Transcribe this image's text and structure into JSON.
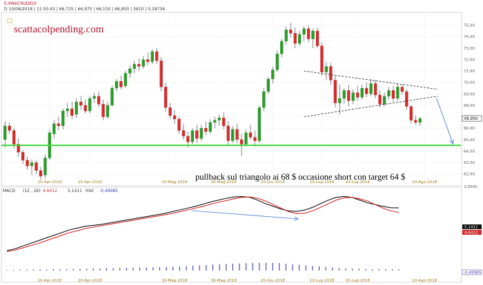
{
  "header": {
    "symbol": "E-MINICRUDEOI",
    "info": "D 10/08/2018 | 11:50:43 | 66,725 | 66,975 | 66,150 | 66,850 | 3610 | 0,18734",
    "brand": "scattacolpending.com"
  },
  "annotation": "pullback sul triangolo ai 68 $  occasione short con target 64 $",
  "macd_header": {
    "label": "MACD",
    "params": "(12 , 26)",
    "v1": "4,6412",
    "v2": "5,1411",
    "hist_label": "Hist",
    "v3": "-0,49985"
  },
  "colors": {
    "up": "#2a9a2a",
    "down": "#d42a2a",
    "support": "#39d839",
    "macd_line": "#111111",
    "signal_line": "#d42a2a",
    "arrow": "#6f9ad8",
    "hist": "#3a3aa8"
  },
  "chart_data": [
    {
      "type": "candlestick",
      "title": "E-MINICRUDEOI",
      "x_ticks": [
        "10-Apr-2018",
        "20-Apr-2018",
        "10-Mag-2018",
        "30-Mag-2018",
        "20-Giu-2018",
        "10-Lug-2018",
        "20-Lug-2018",
        "10-Ago-2018"
      ],
      "y_ticks": [
        "75,00",
        "74,00",
        "73,00",
        "72,00",
        "71,00",
        "70,00",
        "69,00",
        "68,00",
        "67,00",
        "66,00",
        "65,00",
        "64,00",
        "63,00",
        "62,00"
      ],
      "ylim": [
        61.2,
        76.0
      ],
      "last_price_label": "66,850",
      "support_level": 64.5,
      "triangle": {
        "upper": [
          [
            67,
            71.0
          ],
          [
            97,
            69.4
          ]
        ],
        "lower": [
          [
            67,
            67.0
          ],
          [
            97,
            68.8
          ]
        ]
      },
      "candles": [
        {
          "o": 65.0,
          "h": 66.6,
          "l": 64.3,
          "c": 66.2
        },
        {
          "o": 66.2,
          "h": 66.5,
          "l": 65.5,
          "c": 65.8
        },
        {
          "o": 65.8,
          "h": 66.0,
          "l": 64.2,
          "c": 64.6
        },
        {
          "o": 64.6,
          "h": 65.1,
          "l": 63.5,
          "c": 63.9
        },
        {
          "o": 63.9,
          "h": 64.1,
          "l": 62.9,
          "c": 63.2
        },
        {
          "o": 63.2,
          "h": 63.5,
          "l": 62.4,
          "c": 62.7
        },
        {
          "o": 62.7,
          "h": 63.3,
          "l": 61.9,
          "c": 63.0
        },
        {
          "o": 63.0,
          "h": 63.2,
          "l": 62.0,
          "c": 62.3
        },
        {
          "o": 62.3,
          "h": 62.6,
          "l": 61.5,
          "c": 61.8
        },
        {
          "o": 61.9,
          "h": 63.7,
          "l": 61.6,
          "c": 63.4
        },
        {
          "o": 63.4,
          "h": 65.9,
          "l": 63.2,
          "c": 65.6
        },
        {
          "o": 65.5,
          "h": 66.7,
          "l": 65.1,
          "c": 66.4
        },
        {
          "o": 66.4,
          "h": 67.0,
          "l": 65.8,
          "c": 66.2
        },
        {
          "o": 66.2,
          "h": 67.7,
          "l": 65.9,
          "c": 67.5
        },
        {
          "o": 67.5,
          "h": 68.2,
          "l": 67.0,
          "c": 67.7
        },
        {
          "o": 67.7,
          "h": 68.3,
          "l": 66.8,
          "c": 67.1
        },
        {
          "o": 67.2,
          "h": 68.6,
          "l": 66.9,
          "c": 68.3
        },
        {
          "o": 68.3,
          "h": 68.8,
          "l": 67.6,
          "c": 68.0
        },
        {
          "o": 68.0,
          "h": 68.5,
          "l": 67.3,
          "c": 67.5
        },
        {
          "o": 67.5,
          "h": 68.8,
          "l": 67.3,
          "c": 68.6
        },
        {
          "o": 68.6,
          "h": 69.1,
          "l": 68.2,
          "c": 68.8
        },
        {
          "o": 68.8,
          "h": 69.2,
          "l": 67.8,
          "c": 68.1
        },
        {
          "o": 68.1,
          "h": 68.5,
          "l": 66.7,
          "c": 67.0
        },
        {
          "o": 67.0,
          "h": 68.3,
          "l": 66.8,
          "c": 68.0
        },
        {
          "o": 68.0,
          "h": 69.7,
          "l": 67.9,
          "c": 69.5
        },
        {
          "o": 69.5,
          "h": 70.3,
          "l": 69.2,
          "c": 70.1
        },
        {
          "o": 70.1,
          "h": 70.6,
          "l": 69.4,
          "c": 69.6
        },
        {
          "o": 69.7,
          "h": 71.0,
          "l": 69.5,
          "c": 70.8
        },
        {
          "o": 70.8,
          "h": 71.5,
          "l": 70.4,
          "c": 71.2
        },
        {
          "o": 71.2,
          "h": 71.9,
          "l": 70.8,
          "c": 71.6
        },
        {
          "o": 71.6,
          "h": 72.1,
          "l": 71.0,
          "c": 71.4
        },
        {
          "o": 71.4,
          "h": 72.3,
          "l": 71.2,
          "c": 72.0
        },
        {
          "o": 72.0,
          "h": 72.6,
          "l": 71.5,
          "c": 71.8
        },
        {
          "o": 71.8,
          "h": 72.9,
          "l": 71.6,
          "c": 72.7
        },
        {
          "o": 72.7,
          "h": 73.0,
          "l": 71.6,
          "c": 71.9
        },
        {
          "o": 71.9,
          "h": 72.2,
          "l": 69.2,
          "c": 69.6
        },
        {
          "o": 69.6,
          "h": 70.0,
          "l": 67.4,
          "c": 67.8
        },
        {
          "o": 67.8,
          "h": 68.2,
          "l": 66.8,
          "c": 67.1
        },
        {
          "o": 67.1,
          "h": 67.6,
          "l": 66.4,
          "c": 66.8
        },
        {
          "o": 66.8,
          "h": 67.0,
          "l": 65.5,
          "c": 65.8
        },
        {
          "o": 65.8,
          "h": 66.4,
          "l": 65.0,
          "c": 65.3
        },
        {
          "o": 65.3,
          "h": 65.7,
          "l": 64.3,
          "c": 64.8
        },
        {
          "o": 64.8,
          "h": 66.0,
          "l": 64.6,
          "c": 65.8
        },
        {
          "o": 65.8,
          "h": 66.3,
          "l": 64.7,
          "c": 65.1
        },
        {
          "o": 65.1,
          "h": 66.3,
          "l": 64.9,
          "c": 66.0
        },
        {
          "o": 66.0,
          "h": 66.6,
          "l": 65.4,
          "c": 65.7
        },
        {
          "o": 65.7,
          "h": 66.8,
          "l": 65.5,
          "c": 66.5
        },
        {
          "o": 66.5,
          "h": 67.0,
          "l": 66.0,
          "c": 66.7
        },
        {
          "o": 66.7,
          "h": 67.2,
          "l": 66.2,
          "c": 66.9
        },
        {
          "o": 66.9,
          "h": 67.4,
          "l": 65.9,
          "c": 66.2
        },
        {
          "o": 66.2,
          "h": 66.6,
          "l": 64.5,
          "c": 64.9
        },
        {
          "o": 64.9,
          "h": 66.2,
          "l": 64.7,
          "c": 65.9
        },
        {
          "o": 65.9,
          "h": 66.4,
          "l": 64.7,
          "c": 65.0
        },
        {
          "o": 65.0,
          "h": 65.5,
          "l": 63.6,
          "c": 64.6
        },
        {
          "o": 64.6,
          "h": 65.9,
          "l": 64.4,
          "c": 65.6
        },
        {
          "o": 65.6,
          "h": 66.3,
          "l": 65.0,
          "c": 65.2
        },
        {
          "o": 65.2,
          "h": 65.8,
          "l": 64.4,
          "c": 64.9
        },
        {
          "o": 64.9,
          "h": 68.0,
          "l": 64.7,
          "c": 67.8
        },
        {
          "o": 67.8,
          "h": 69.5,
          "l": 67.5,
          "c": 69.2
        },
        {
          "o": 69.2,
          "h": 70.5,
          "l": 69.0,
          "c": 70.3
        },
        {
          "o": 70.3,
          "h": 71.4,
          "l": 69.9,
          "c": 71.1
        },
        {
          "o": 71.1,
          "h": 72.8,
          "l": 70.9,
          "c": 72.5
        },
        {
          "o": 72.5,
          "h": 73.8,
          "l": 72.2,
          "c": 73.6
        },
        {
          "o": 73.6,
          "h": 74.9,
          "l": 73.3,
          "c": 74.6
        },
        {
          "o": 74.6,
          "h": 75.2,
          "l": 73.9,
          "c": 74.3
        },
        {
          "o": 74.3,
          "h": 74.8,
          "l": 73.0,
          "c": 73.4
        },
        {
          "o": 73.4,
          "h": 74.5,
          "l": 73.2,
          "c": 74.2
        },
        {
          "o": 74.2,
          "h": 74.9,
          "l": 73.6,
          "c": 74.7
        },
        {
          "o": 74.7,
          "h": 75.0,
          "l": 73.5,
          "c": 73.8
        },
        {
          "o": 73.8,
          "h": 74.7,
          "l": 73.0,
          "c": 74.5
        },
        {
          "o": 74.5,
          "h": 74.8,
          "l": 73.0,
          "c": 73.2
        },
        {
          "o": 73.2,
          "h": 73.5,
          "l": 70.6,
          "c": 70.9
        },
        {
          "o": 70.9,
          "h": 71.8,
          "l": 70.2,
          "c": 71.4
        },
        {
          "o": 71.4,
          "h": 71.7,
          "l": 69.8,
          "c": 70.2
        },
        {
          "o": 70.2,
          "h": 70.6,
          "l": 67.8,
          "c": 68.2
        },
        {
          "o": 68.2,
          "h": 69.8,
          "l": 67.2,
          "c": 68.6
        },
        {
          "o": 68.6,
          "h": 69.5,
          "l": 68.1,
          "c": 69.3
        },
        {
          "o": 69.3,
          "h": 69.8,
          "l": 67.9,
          "c": 68.4
        },
        {
          "o": 68.4,
          "h": 69.4,
          "l": 68.1,
          "c": 69.1
        },
        {
          "o": 69.1,
          "h": 69.7,
          "l": 68.4,
          "c": 68.7
        },
        {
          "o": 68.7,
          "h": 69.8,
          "l": 68.5,
          "c": 69.5
        },
        {
          "o": 69.5,
          "h": 70.0,
          "l": 68.7,
          "c": 69.0
        },
        {
          "o": 69.0,
          "h": 70.3,
          "l": 68.8,
          "c": 69.9
        },
        {
          "o": 69.9,
          "h": 70.2,
          "l": 68.6,
          "c": 68.9
        },
        {
          "o": 68.9,
          "h": 69.3,
          "l": 67.8,
          "c": 68.1
        },
        {
          "o": 68.1,
          "h": 69.1,
          "l": 67.9,
          "c": 68.8
        },
        {
          "o": 68.8,
          "h": 69.6,
          "l": 68.5,
          "c": 69.3
        },
        {
          "o": 69.3,
          "h": 69.7,
          "l": 68.3,
          "c": 68.6
        },
        {
          "o": 68.6,
          "h": 69.9,
          "l": 68.4,
          "c": 69.6
        },
        {
          "o": 69.6,
          "h": 69.8,
          "l": 68.9,
          "c": 69.2
        },
        {
          "o": 69.2,
          "h": 69.4,
          "l": 67.6,
          "c": 67.9
        },
        {
          "o": 67.9,
          "h": 68.0,
          "l": 66.4,
          "c": 66.7
        },
        {
          "o": 66.7,
          "h": 67.1,
          "l": 66.3,
          "c": 66.5
        },
        {
          "o": 66.5,
          "h": 67.0,
          "l": 66.2,
          "c": 66.85
        }
      ]
    },
    {
      "type": "line",
      "title": "MACD",
      "y_ticks": [
        "3,0000",
        "0,0000"
      ],
      "value_labels": [
        "5,1411",
        "4,6412",
        "-0,49985"
      ],
      "series": [
        {
          "name": "MACD",
          "values": [
            0.4,
            0.6,
            0.9,
            1.2,
            1.5,
            1.8,
            2.1,
            2.4,
            2.7,
            2.9,
            3.1,
            3.2,
            3.3,
            3.45,
            3.6,
            3.75,
            3.9,
            4.05,
            4.2,
            4.35,
            4.5,
            4.7,
            4.9,
            5.1,
            5.3,
            5.55,
            5.8,
            6.0,
            6.2,
            6.35,
            6.4,
            6.3,
            6.0,
            5.6,
            5.3,
            5.0,
            4.8,
            4.75,
            4.9,
            5.2,
            5.6,
            6.0,
            6.3,
            6.4,
            6.3,
            6.0,
            5.7,
            5.5,
            5.3,
            5.15,
            5.14
          ]
        },
        {
          "name": "Signal",
          "values": [
            0.3,
            0.45,
            0.7,
            0.95,
            1.2,
            1.5,
            1.8,
            2.1,
            2.4,
            2.6,
            2.85,
            3.0,
            3.15,
            3.3,
            3.45,
            3.6,
            3.75,
            3.9,
            4.05,
            4.2,
            4.35,
            4.5,
            4.7,
            4.9,
            5.1,
            5.3,
            5.55,
            5.75,
            5.95,
            6.15,
            6.3,
            6.35,
            6.2,
            5.9,
            5.5,
            5.1,
            4.7,
            4.5,
            4.55,
            4.8,
            5.2,
            5.6,
            6.0,
            6.25,
            6.3,
            6.15,
            5.9,
            5.5,
            5.1,
            4.8,
            4.64
          ]
        }
      ],
      "histogram": [
        -0.2,
        -0.25,
        -0.3,
        -0.35,
        -0.4,
        -0.42,
        -0.45,
        -0.5,
        -0.52,
        -0.55,
        -0.6,
        -0.65,
        -0.7,
        -0.75,
        -0.8,
        -0.85,
        -0.9,
        -0.95,
        -1.0,
        -1.05,
        -1.1,
        -1.15,
        -1.2,
        -1.25,
        -1.3,
        -1.4,
        -1.5,
        -1.6,
        -1.75,
        -1.9,
        -2.05,
        -2.2,
        -2.3,
        -2.4,
        -2.5,
        -2.6,
        -2.7,
        -2.75,
        -2.8,
        -2.85,
        -2.8,
        -2.7,
        -2.5,
        -2.3,
        -2.1,
        -1.9,
        -1.7,
        -1.5,
        -1.3,
        -1.1,
        -0.9,
        -0.8,
        -0.7,
        -0.65,
        -0.6,
        -0.55,
        -0.5,
        -0.5,
        -0.5,
        -0.5
      ]
    }
  ]
}
